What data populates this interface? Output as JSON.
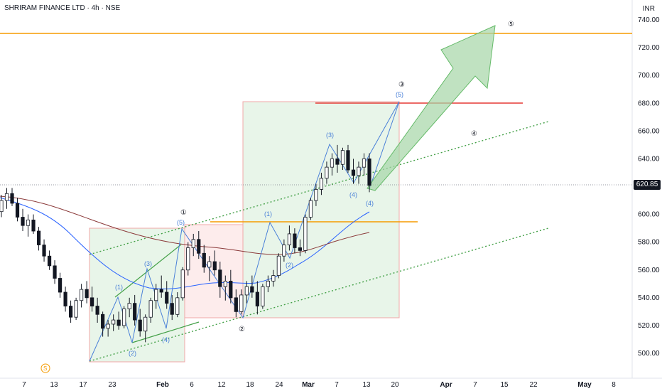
{
  "header": {
    "symbol": "SHRIRAM FINANCE LTD",
    "timeframe": "4h",
    "exchange": "NSE",
    "separator": "·"
  },
  "axis": {
    "currency": "INR",
    "last_price": "620.85",
    "price_ticks": [
      "740.00",
      "720.00",
      "700.00",
      "680.00",
      "660.00",
      "640.00",
      "620.00",
      "600.00",
      "580.00",
      "560.00",
      "540.00",
      "520.00",
      "500.00"
    ],
    "time_ticks": [
      {
        "label": "7",
        "bold": false
      },
      {
        "label": "13",
        "bold": false
      },
      {
        "label": "17",
        "bold": false
      },
      {
        "label": "23",
        "bold": false
      },
      {
        "label": "Feb",
        "bold": true
      },
      {
        "label": "6",
        "bold": false
      },
      {
        "label": "12",
        "bold": false
      },
      {
        "label": "18",
        "bold": false
      },
      {
        "label": "24",
        "bold": false
      },
      {
        "label": "Mar",
        "bold": true
      },
      {
        "label": "7",
        "bold": false
      },
      {
        "label": "13",
        "bold": false
      },
      {
        "label": "20",
        "bold": false
      },
      {
        "label": "Apr",
        "bold": true
      },
      {
        "label": "7",
        "bold": false
      },
      {
        "label": "15",
        "bold": false
      },
      {
        "label": "22",
        "bold": false
      },
      {
        "label": "May",
        "bold": true
      },
      {
        "label": "8",
        "bold": false
      }
    ]
  },
  "colors": {
    "up": "#ffffff",
    "down": "#131722",
    "ma_fast": "#2962ff",
    "ma_slow": "#8b3a3a",
    "target_line": "#f59b00",
    "resistance": "#e53935",
    "channel": "#43a047",
    "wave": "#4a80d8",
    "arrow_fill": "#a5d6a7",
    "box_green": "#e8f5e9",
    "box_red": "#fdecec"
  },
  "annotations": {
    "minor_waves": [
      "(1)",
      "(2)",
      "(3)",
      "(4)",
      "(5)",
      "(1)",
      "(2)",
      "(3)",
      "(4)",
      "(5)",
      "(4)"
    ],
    "major_waves": [
      "①",
      "②",
      "③",
      "④",
      "⑤"
    ],
    "source_icon": "S"
  },
  "chart_data": {
    "type": "candlestick",
    "interval": "4h",
    "y_range": [
      490,
      745
    ],
    "last": 620.85,
    "target_level": 730,
    "resistance_level": 680,
    "support_level": 595,
    "candles": [
      [
        602,
        614,
        598,
        610
      ],
      [
        610,
        619,
        604,
        615
      ],
      [
        615,
        619,
        606,
        608
      ],
      [
        608,
        612,
        595,
        598
      ],
      [
        598,
        604,
        588,
        592
      ],
      [
        592,
        600,
        584,
        596
      ],
      [
        596,
        600,
        586,
        588
      ],
      [
        588,
        591,
        574,
        578
      ],
      [
        578,
        582,
        566,
        570
      ],
      [
        570,
        574,
        560,
        563
      ],
      [
        563,
        567,
        550,
        554
      ],
      [
        554,
        558,
        540,
        544
      ],
      [
        544,
        548,
        530,
        534
      ],
      [
        534,
        538,
        522,
        526
      ],
      [
        526,
        540,
        524,
        538
      ],
      [
        538,
        550,
        533,
        546
      ],
      [
        546,
        552,
        536,
        540
      ],
      [
        540,
        548,
        530,
        534
      ],
      [
        534,
        540,
        522,
        528
      ],
      [
        528,
        530,
        512,
        518
      ],
      [
        518,
        524,
        512,
        521
      ],
      [
        521,
        528,
        516,
        524
      ],
      [
        524,
        530,
        517,
        520
      ],
      [
        520,
        534,
        518,
        532
      ],
      [
        532,
        540,
        526,
        536
      ],
      [
        536,
        542,
        520,
        524
      ],
      [
        524,
        532,
        512,
        516
      ],
      [
        516,
        528,
        508,
        526
      ],
      [
        526,
        540,
        522,
        538
      ],
      [
        538,
        550,
        532,
        546
      ],
      [
        546,
        556,
        540,
        544
      ],
      [
        544,
        552,
        532,
        536
      ],
      [
        536,
        542,
        524,
        528
      ],
      [
        528,
        544,
        526,
        540
      ],
      [
        540,
        562,
        538,
        560
      ],
      [
        560,
        580,
        556,
        576
      ],
      [
        576,
        586,
        570,
        582
      ],
      [
        582,
        588,
        568,
        572
      ],
      [
        572,
        578,
        558,
        562
      ],
      [
        562,
        570,
        552,
        566
      ],
      [
        566,
        574,
        556,
        560
      ],
      [
        560,
        566,
        540,
        548
      ],
      [
        548,
        556,
        538,
        552
      ],
      [
        552,
        560,
        536,
        540
      ],
      [
        540,
        546,
        526,
        530
      ],
      [
        530,
        546,
        528,
        542
      ],
      [
        542,
        552,
        536,
        548
      ],
      [
        548,
        556,
        540,
        544
      ],
      [
        544,
        552,
        528,
        534
      ],
      [
        534,
        550,
        532,
        548
      ],
      [
        548,
        556,
        544,
        552
      ],
      [
        552,
        560,
        548,
        556
      ],
      [
        556,
        572,
        554,
        570
      ],
      [
        570,
        582,
        566,
        578
      ],
      [
        578,
        592,
        574,
        586
      ],
      [
        586,
        590,
        572,
        576
      ],
      [
        576,
        582,
        570,
        574
      ],
      [
        574,
        600,
        572,
        598
      ],
      [
        598,
        612,
        596,
        610
      ],
      [
        610,
        622,
        606,
        618
      ],
      [
        618,
        630,
        614,
        626
      ],
      [
        626,
        638,
        622,
        634
      ],
      [
        634,
        644,
        628,
        640
      ],
      [
        640,
        650,
        630,
        636
      ],
      [
        636,
        648,
        632,
        646
      ],
      [
        646,
        650,
        630,
        632
      ],
      [
        632,
        640,
        622,
        628
      ],
      [
        628,
        638,
        622,
        634
      ],
      [
        634,
        644,
        628,
        640
      ],
      [
        640,
        644,
        616,
        620.85
      ]
    ]
  }
}
